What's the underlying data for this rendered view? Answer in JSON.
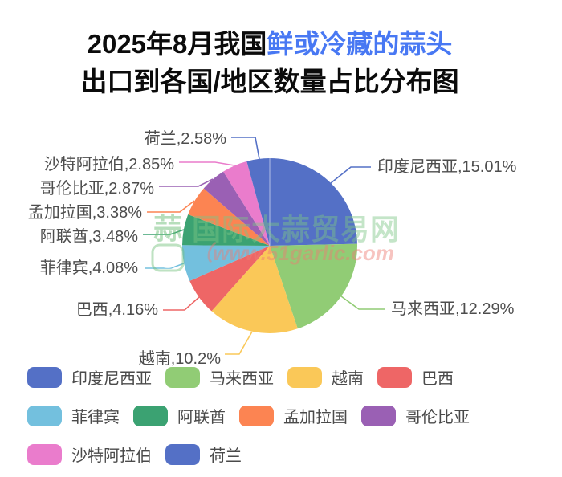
{
  "title": {
    "line1_prefix": "2025年8月我国",
    "line1_highlight": "鲜或冷藏的蒜头",
    "line2": "出口到各国/地区数量占比分布图",
    "highlight_color": "#4878F3"
  },
  "watermark": {
    "logo_char": "蒜",
    "site_name": "国际大蒜贸易网",
    "url": "（www.51garlic.com"
  },
  "chart_data": {
    "type": "pie",
    "title": "2025年8月我国鲜或冷藏的蒜头出口到各国/地区数量占比分布图",
    "unit": "%",
    "legend_position": "bottom",
    "label_style": "callout labels formatted as name,value%",
    "series": [
      {
        "name": "印度尼西亚",
        "value": 15.01,
        "label": "印度尼西亚,15.01%",
        "color": "#5470C6"
      },
      {
        "name": "马来西亚",
        "value": 12.29,
        "label": "马来西亚,12.29%",
        "color": "#91CC75"
      },
      {
        "name": "越南",
        "value": 10.2,
        "label": "越南,10.2%",
        "color": "#FAC858"
      },
      {
        "name": "巴西",
        "value": 4.16,
        "label": "巴西,4.16%",
        "color": "#EE6666"
      },
      {
        "name": "菲律宾",
        "value": 4.08,
        "label": "菲律宾,4.08%",
        "color": "#73C0DE"
      },
      {
        "name": "阿联酋",
        "value": 3.48,
        "label": "阿联酋,3.48%",
        "color": "#3BA272"
      },
      {
        "name": "孟加拉国",
        "value": 3.38,
        "label": "孟加拉国,3.38%",
        "color": "#FC8452"
      },
      {
        "name": "哥伦比亚",
        "value": 2.87,
        "label": "哥伦比亚,2.87%",
        "color": "#9A60B4"
      },
      {
        "name": "沙特阿拉伯",
        "value": 2.85,
        "label": "沙特阿拉伯,2.85%",
        "color": "#EA7CCC"
      },
      {
        "name": "荷兰",
        "value": 2.58,
        "label": "荷兰,2.58%",
        "color": "#5470C6"
      }
    ]
  }
}
